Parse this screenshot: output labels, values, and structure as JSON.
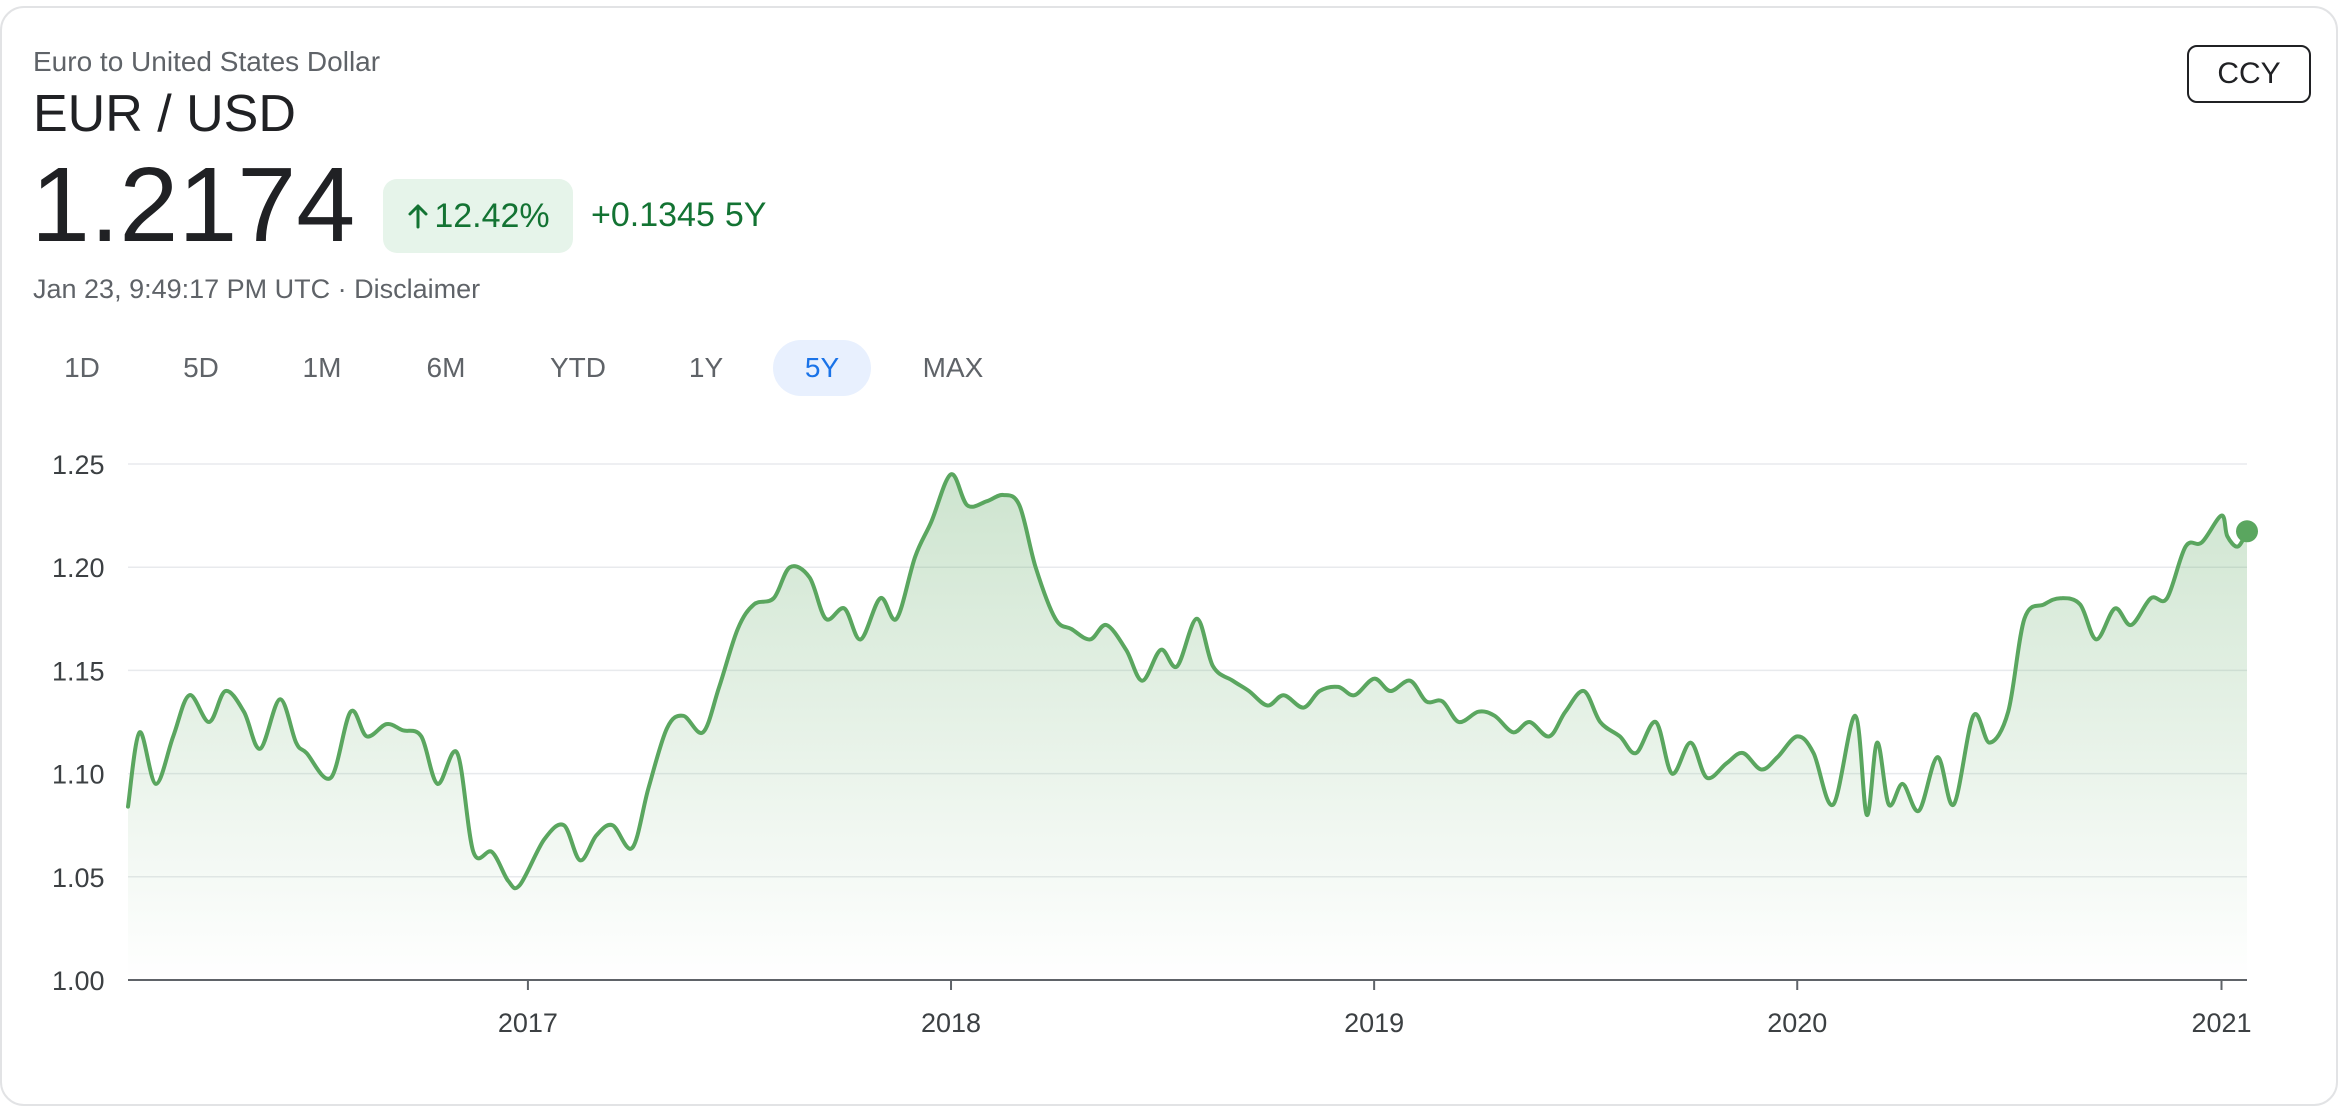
{
  "header": {
    "subtitle": "Euro to United States Dollar",
    "pair": "EUR / USD",
    "price": "1.2174",
    "change_pct": "12.42%",
    "change_abs": "+0.1345",
    "change_period": "5Y",
    "timestamp": "Jan 23, 9:49:17 PM UTC · Disclaimer",
    "currency_button": "CCY",
    "arrow_icon": "arrow-up-icon"
  },
  "range_tabs": [
    {
      "label": "1D",
      "active": false
    },
    {
      "label": "5D",
      "active": false
    },
    {
      "label": "1M",
      "active": false
    },
    {
      "label": "6M",
      "active": false
    },
    {
      "label": "YTD",
      "active": false
    },
    {
      "label": "1Y",
      "active": false
    },
    {
      "label": "5Y",
      "active": true
    },
    {
      "label": "MAX",
      "active": false
    }
  ],
  "colors": {
    "line": "#5aa65f",
    "positive": "#137333",
    "positive_bg": "#e6f4ea",
    "active_tab_bg": "#e8f0fe",
    "active_tab_text": "#1a73e8"
  },
  "chart_data": {
    "type": "area",
    "title": "",
    "xlabel": "",
    "ylabel": "",
    "ylim": [
      1.0,
      1.25
    ],
    "yticks": [
      "1.25",
      "1.20",
      "1.15",
      "1.10",
      "1.05",
      "1.00"
    ],
    "xticks": [
      {
        "label": "2017",
        "x": "2017-01-01"
      },
      {
        "label": "2018",
        "x": "2018-01-01"
      },
      {
        "label": "2019",
        "x": "2019-01-01"
      },
      {
        "label": "2020",
        "x": "2020-01-01"
      },
      {
        "label": "2021",
        "x": "2021-01-01"
      }
    ],
    "xlim": [
      "2016-01-22",
      "2021-01-23"
    ],
    "grid": true,
    "legend": "none",
    "series": [
      {
        "x": [
          "2016-01-22",
          "2016-02-01",
          "2016-02-15",
          "2016-03-01",
          "2016-03-15",
          "2016-04-01",
          "2016-04-15",
          "2016-05-01",
          "2016-05-15",
          "2016-06-01",
          "2016-06-15",
          "2016-06-24",
          "2016-07-15",
          "2016-08-01",
          "2016-08-15",
          "2016-09-01",
          "2016-09-15",
          "2016-10-01",
          "2016-10-15",
          "2016-11-01",
          "2016-11-15",
          "2016-12-01",
          "2016-12-15",
          "2016-12-25",
          "2017-01-15",
          "2017-02-01",
          "2017-02-15",
          "2017-03-01",
          "2017-03-15",
          "2017-04-01",
          "2017-04-15",
          "2017-05-01",
          "2017-05-15",
          "2017-06-01",
          "2017-06-15",
          "2017-07-01",
          "2017-07-15",
          "2017-08-01",
          "2017-08-15",
          "2017-09-01",
          "2017-09-15",
          "2017-10-01",
          "2017-10-15",
          "2017-11-01",
          "2017-11-15",
          "2017-12-01",
          "2017-12-15",
          "2018-01-01",
          "2018-01-15",
          "2018-02-01",
          "2018-02-15",
          "2018-03-01",
          "2018-03-15",
          "2018-04-01",
          "2018-04-15",
          "2018-05-01",
          "2018-05-15",
          "2018-06-01",
          "2018-06-15",
          "2018-07-01",
          "2018-07-15",
          "2018-08-01",
          "2018-08-15",
          "2018-09-01",
          "2018-09-15",
          "2018-10-01",
          "2018-10-15",
          "2018-11-01",
          "2018-11-15",
          "2018-12-01",
          "2018-12-15",
          "2019-01-01",
          "2019-01-15",
          "2019-02-01",
          "2019-02-15",
          "2019-03-01",
          "2019-03-15",
          "2019-04-01",
          "2019-04-15",
          "2019-05-01",
          "2019-05-15",
          "2019-06-01",
          "2019-06-15",
          "2019-07-01",
          "2019-07-15",
          "2019-08-01",
          "2019-08-15",
          "2019-09-01",
          "2019-09-15",
          "2019-10-01",
          "2019-10-15",
          "2019-11-01",
          "2019-11-15",
          "2019-12-01",
          "2019-12-15",
          "2020-01-01",
          "2020-01-15",
          "2020-02-01",
          "2020-02-20",
          "2020-03-01",
          "2020-03-10",
          "2020-03-20",
          "2020-04-01",
          "2020-04-15",
          "2020-05-01",
          "2020-05-15",
          "2020-06-01",
          "2020-06-15",
          "2020-07-01",
          "2020-07-15",
          "2020-08-01",
          "2020-08-15",
          "2020-09-01",
          "2020-09-15",
          "2020-10-01",
          "2020-10-15",
          "2020-11-01",
          "2020-11-15",
          "2020-12-01",
          "2020-12-15",
          "2021-01-01",
          "2021-01-06",
          "2021-01-15",
          "2021-01-23"
        ],
        "values": [
          1.084,
          1.12,
          1.095,
          1.118,
          1.138,
          1.125,
          1.14,
          1.13,
          1.112,
          1.136,
          1.115,
          1.11,
          1.098,
          1.13,
          1.118,
          1.124,
          1.121,
          1.118,
          1.095,
          1.11,
          1.062,
          1.062,
          1.048,
          1.046,
          1.068,
          1.075,
          1.058,
          1.07,
          1.075,
          1.064,
          1.093,
          1.122,
          1.128,
          1.12,
          1.142,
          1.17,
          1.182,
          1.185,
          1.2,
          1.195,
          1.175,
          1.18,
          1.165,
          1.185,
          1.175,
          1.205,
          1.222,
          1.245,
          1.23,
          1.232,
          1.235,
          1.23,
          1.2,
          1.175,
          1.17,
          1.165,
          1.172,
          1.16,
          1.145,
          1.16,
          1.152,
          1.175,
          1.152,
          1.145,
          1.14,
          1.133,
          1.138,
          1.132,
          1.14,
          1.142,
          1.138,
          1.146,
          1.14,
          1.145,
          1.135,
          1.135,
          1.125,
          1.13,
          1.128,
          1.12,
          1.125,
          1.118,
          1.13,
          1.14,
          1.125,
          1.118,
          1.11,
          1.125,
          1.1,
          1.115,
          1.098,
          1.105,
          1.11,
          1.102,
          1.108,
          1.118,
          1.11,
          1.085,
          1.128,
          1.08,
          1.115,
          1.085,
          1.095,
          1.082,
          1.108,
          1.085,
          1.128,
          1.115,
          1.13,
          1.175,
          1.182,
          1.185,
          1.182,
          1.165,
          1.18,
          1.172,
          1.185,
          1.185,
          1.21,
          1.212,
          1.225,
          1.215,
          1.21,
          1.2174
        ]
      }
    ]
  }
}
